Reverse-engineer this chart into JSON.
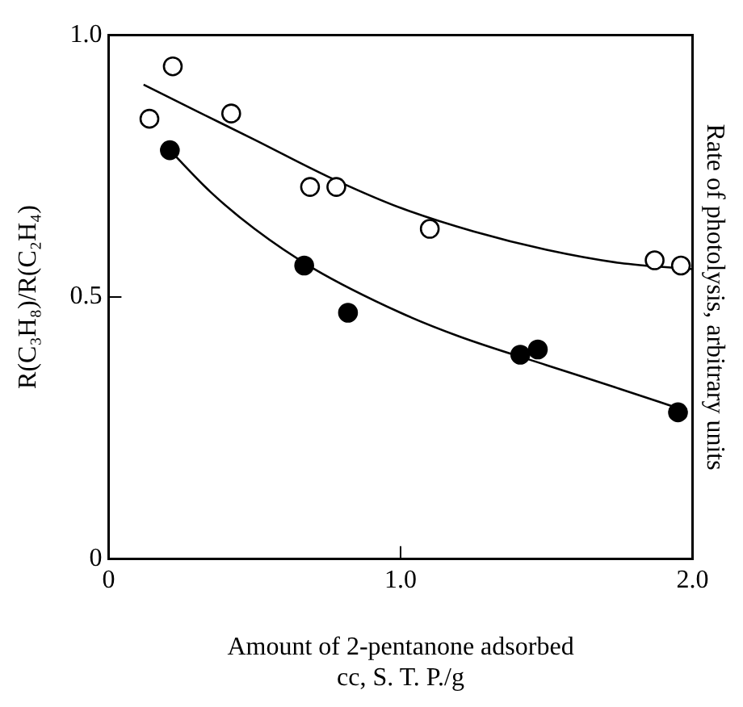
{
  "chart_data": {
    "type": "scatter",
    "xlabel": "Amount of 2-pentanone adsorbed\ncc, S. T. P./g",
    "ylabel": "R(C₃H₈)/R(C₂H₄)",
    "y2label": "Rate of photolysis, arbitrary units",
    "xlim": [
      0,
      2.0
    ],
    "xticks": [
      0,
      {
        "value": 1,
        "label": "1.0"
      },
      {
        "value": 2,
        "label": "2.0"
      }
    ],
    "ylim": [
      0,
      1.0
    ],
    "yticks": [
      0,
      0.5,
      {
        "value": 1,
        "label": "1.0"
      }
    ],
    "grid": false,
    "legend": false,
    "series": [
      {
        "marker": "circle",
        "color": "#ffffff",
        "x": [
          0.14,
          0.22,
          0.42,
          0.69,
          0.78,
          1.1,
          1.87,
          1.96
        ],
        "values": [
          0.84,
          0.94,
          0.85,
          0.71,
          0.71,
          0.63,
          0.57,
          0.56
        ]
      },
      {
        "marker": "circle",
        "color": "#000000",
        "x": [
          0.21,
          0.67,
          0.82,
          1.41,
          1.47,
          1.95
        ],
        "values": [
          0.78,
          0.56,
          0.47,
          0.39,
          0.4,
          0.28
        ]
      },
      {
        "type": "line",
        "marker": "none",
        "color": "#000000",
        "x": [
          0.12,
          0.3,
          0.5,
          0.75,
          1.0,
          1.25,
          1.5,
          1.75,
          2.0
        ],
        "values": [
          0.905,
          0.855,
          0.8,
          0.73,
          0.67,
          0.625,
          0.59,
          0.565,
          0.553
        ]
      },
      {
        "type": "line",
        "marker": "none",
        "color": "#000000",
        "x": [
          0.21,
          0.35,
          0.5,
          0.7,
          1.0,
          1.2,
          1.5,
          1.75,
          1.95
        ],
        "values": [
          0.78,
          0.7,
          0.63,
          0.555,
          0.47,
          0.425,
          0.37,
          0.325,
          0.288
        ]
      }
    ]
  }
}
